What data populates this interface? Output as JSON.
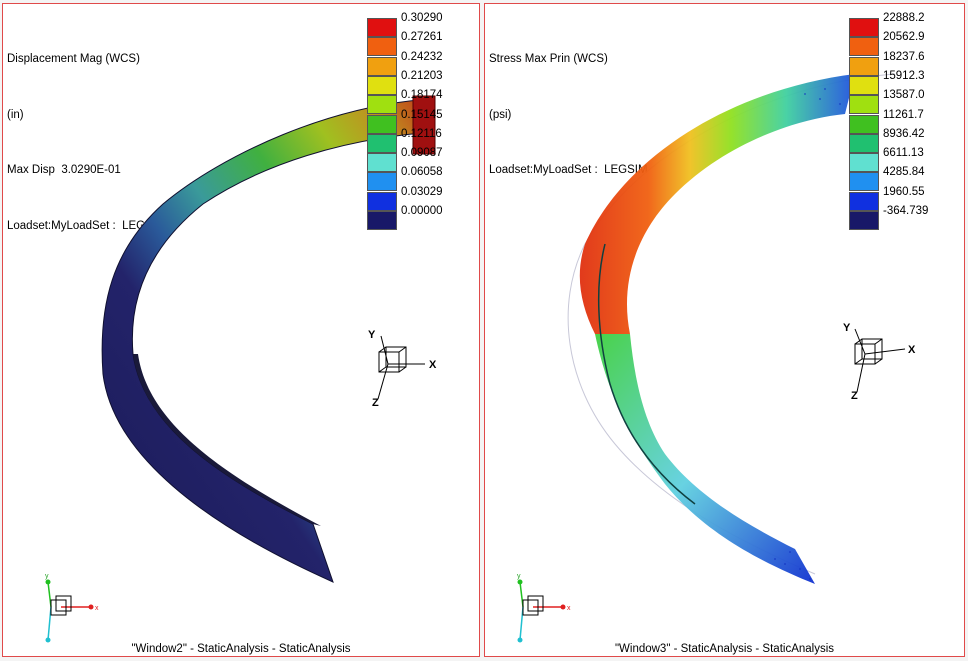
{
  "left": {
    "info": [
      "Displacement Mag (WCS)",
      "(in)",
      "Max Disp  3.0290E-01",
      "Loadset:MyLoadSet :  LEGSIM"
    ],
    "legend_values": [
      "0.30290",
      "0.27261",
      "0.24232",
      "0.21203",
      "0.18174",
      "0.15145",
      "0.12116",
      "0.09087",
      "0.06058",
      "0.03029",
      "0.00000"
    ],
    "triad_labels": [
      "Y",
      "X",
      "Z"
    ],
    "mini_triad_labels": [
      "y",
      "x"
    ],
    "caption": "\"Window2\" - StaticAnalysis - StaticAnalysis"
  },
  "right": {
    "info": [
      "Stress Max Prin (WCS)",
      "(psi)",
      "Loadset:MyLoadSet :  LEGSIM"
    ],
    "legend_values": [
      "22888.2",
      "20562.9",
      "18237.6",
      "15912.3",
      "13587.0",
      "11261.7",
      "8936.42",
      "6611.13",
      "4285.84",
      "1960.55",
      "-364.739"
    ],
    "triad_labels": [
      "Y",
      "X",
      "Z"
    ],
    "mini_triad_labels": [
      "y",
      "x"
    ],
    "caption": "\"Window3\" - StaticAnalysis - StaticAnalysis"
  },
  "colors": {
    "scale": [
      "#e01010",
      "#f06010",
      "#f0a010",
      "#e0e010",
      "#a0e010",
      "#40c020",
      "#20c070",
      "#60e0d0",
      "#2090f0",
      "#1030e0",
      "#181868"
    ],
    "window_border": "#e04a4a"
  }
}
